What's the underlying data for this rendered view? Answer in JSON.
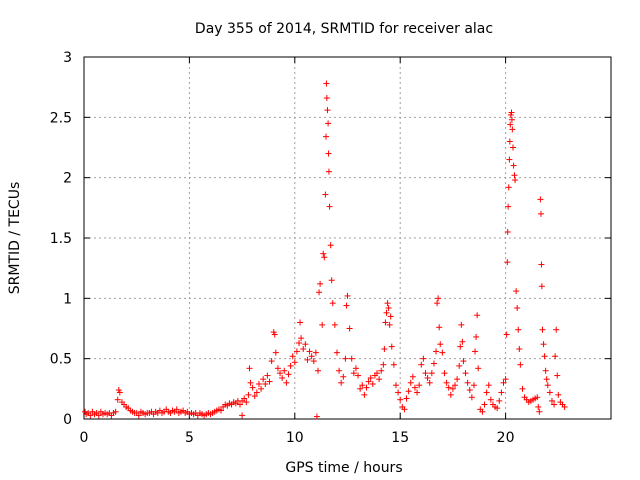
{
  "chart_data": {
    "type": "scatter",
    "title": "Day 355 of 2014, SRMTID for receiver alac",
    "xlabel": "GPS time / hours",
    "ylabel": "SRMTID / TECUs",
    "xlim": [
      0,
      25
    ],
    "ylim": [
      0,
      3
    ],
    "xticks": [
      0,
      5,
      10,
      15,
      20
    ],
    "xtick_labels": [
      "0",
      "5",
      "10",
      "15",
      "20"
    ],
    "yticks": [
      0,
      0.5,
      1,
      1.5,
      2,
      2.5,
      3
    ],
    "ytick_labels": [
      "0",
      "0.5",
      "1",
      "1.5",
      "2",
      "2.5",
      "3"
    ],
    "grid": true,
    "marker": "+",
    "series": [
      {
        "name": "SRMTID",
        "color": "#ff0000",
        "points": [
          [
            0.05,
            0.06
          ],
          [
            0.1,
            0.04
          ],
          [
            0.2,
            0.05
          ],
          [
            0.3,
            0.03
          ],
          [
            0.4,
            0.06
          ],
          [
            0.5,
            0.04
          ],
          [
            0.6,
            0.05
          ],
          [
            0.7,
            0.03
          ],
          [
            0.8,
            0.06
          ],
          [
            0.9,
            0.04
          ],
          [
            1.0,
            0.05
          ],
          [
            1.1,
            0.04
          ],
          [
            1.2,
            0.05
          ],
          [
            1.3,
            0.03
          ],
          [
            1.4,
            0.05
          ],
          [
            1.5,
            0.06
          ],
          [
            1.6,
            0.16
          ],
          [
            1.65,
            0.24
          ],
          [
            1.7,
            0.22
          ],
          [
            1.8,
            0.14
          ],
          [
            1.9,
            0.12
          ],
          [
            2.0,
            0.1
          ],
          [
            2.1,
            0.09
          ],
          [
            2.2,
            0.07
          ],
          [
            2.3,
            0.06
          ],
          [
            2.4,
            0.05
          ],
          [
            2.5,
            0.05
          ],
          [
            2.6,
            0.03
          ],
          [
            2.7,
            0.06
          ],
          [
            2.8,
            0.05
          ],
          [
            2.9,
            0.04
          ],
          [
            3.0,
            0.05
          ],
          [
            3.1,
            0.05
          ],
          [
            3.2,
            0.06
          ],
          [
            3.3,
            0.04
          ],
          [
            3.4,
            0.06
          ],
          [
            3.5,
            0.05
          ],
          [
            3.6,
            0.07
          ],
          [
            3.7,
            0.05
          ],
          [
            3.8,
            0.06
          ],
          [
            3.9,
            0.08
          ],
          [
            4.0,
            0.06
          ],
          [
            4.1,
            0.05
          ],
          [
            4.2,
            0.07
          ],
          [
            4.3,
            0.06
          ],
          [
            4.4,
            0.08
          ],
          [
            4.5,
            0.05
          ],
          [
            4.6,
            0.06
          ],
          [
            4.7,
            0.07
          ],
          [
            4.8,
            0.05
          ],
          [
            4.9,
            0.06
          ],
          [
            5.0,
            0.04
          ],
          [
            5.1,
            0.05
          ],
          [
            5.2,
            0.04
          ],
          [
            5.3,
            0.05
          ],
          [
            5.4,
            0.03
          ],
          [
            5.5,
            0.05
          ],
          [
            5.6,
            0.04
          ],
          [
            5.7,
            0.03
          ],
          [
            5.8,
            0.04
          ],
          [
            5.9,
            0.05
          ],
          [
            6.0,
            0.04
          ],
          [
            6.1,
            0.05
          ],
          [
            6.2,
            0.06
          ],
          [
            6.3,
            0.07
          ],
          [
            6.4,
            0.08
          ],
          [
            6.5,
            0.07
          ],
          [
            6.6,
            0.1
          ],
          [
            6.7,
            0.12
          ],
          [
            6.8,
            0.11
          ],
          [
            6.9,
            0.13
          ],
          [
            7.0,
            0.12
          ],
          [
            7.1,
            0.14
          ],
          [
            7.2,
            0.13
          ],
          [
            7.3,
            0.15
          ],
          [
            7.4,
            0.12
          ],
          [
            7.5,
            0.03
          ],
          [
            7.5,
            0.15
          ],
          [
            7.6,
            0.17
          ],
          [
            7.7,
            0.14
          ],
          [
            7.8,
            0.2
          ],
          [
            7.85,
            0.42
          ],
          [
            7.9,
            0.3
          ],
          [
            8.0,
            0.26
          ],
          [
            8.1,
            0.19
          ],
          [
            8.2,
            0.22
          ],
          [
            8.3,
            0.29
          ],
          [
            8.4,
            0.25
          ],
          [
            8.5,
            0.33
          ],
          [
            8.6,
            0.29
          ],
          [
            8.7,
            0.36
          ],
          [
            8.8,
            0.31
          ],
          [
            8.9,
            0.48
          ],
          [
            9.0,
            0.72
          ],
          [
            9.05,
            0.7
          ],
          [
            9.1,
            0.55
          ],
          [
            9.2,
            0.42
          ],
          [
            9.3,
            0.38
          ],
          [
            9.4,
            0.34
          ],
          [
            9.5,
            0.4
          ],
          [
            9.6,
            0.3
          ],
          [
            9.7,
            0.37
          ],
          [
            9.8,
            0.44
          ],
          [
            9.9,
            0.52
          ],
          [
            10.0,
            0.47
          ],
          [
            10.1,
            0.56
          ],
          [
            10.2,
            0.63
          ],
          [
            10.25,
            0.8
          ],
          [
            10.3,
            0.67
          ],
          [
            10.4,
            0.58
          ],
          [
            10.5,
            0.62
          ],
          [
            10.6,
            0.49
          ],
          [
            10.7,
            0.56
          ],
          [
            10.8,
            0.52
          ],
          [
            10.9,
            0.48
          ],
          [
            11.0,
            0.55
          ],
          [
            11.05,
            0.02
          ],
          [
            11.1,
            0.4
          ],
          [
            11.15,
            1.05
          ],
          [
            11.2,
            1.12
          ],
          [
            11.3,
            0.78
          ],
          [
            11.35,
            1.37
          ],
          [
            11.4,
            1.34
          ],
          [
            11.45,
            1.86
          ],
          [
            11.48,
            2.34
          ],
          [
            11.5,
            2.78
          ],
          [
            11.52,
            2.66
          ],
          [
            11.55,
            2.56
          ],
          [
            11.58,
            2.45
          ],
          [
            11.6,
            2.2
          ],
          [
            11.62,
            2.05
          ],
          [
            11.65,
            1.76
          ],
          [
            11.7,
            1.44
          ],
          [
            11.75,
            1.15
          ],
          [
            11.8,
            0.96
          ],
          [
            11.9,
            0.78
          ],
          [
            12.0,
            0.55
          ],
          [
            12.1,
            0.4
          ],
          [
            12.2,
            0.3
          ],
          [
            12.3,
            0.35
          ],
          [
            12.4,
            0.5
          ],
          [
            12.45,
            0.94
          ],
          [
            12.5,
            1.02
          ],
          [
            12.6,
            0.75
          ],
          [
            12.7,
            0.5
          ],
          [
            12.8,
            0.38
          ],
          [
            12.9,
            0.42
          ],
          [
            13.0,
            0.36
          ],
          [
            13.1,
            0.25
          ],
          [
            13.2,
            0.28
          ],
          [
            13.3,
            0.2
          ],
          [
            13.4,
            0.26
          ],
          [
            13.5,
            0.31
          ],
          [
            13.6,
            0.34
          ],
          [
            13.7,
            0.29
          ],
          [
            13.8,
            0.36
          ],
          [
            13.9,
            0.38
          ],
          [
            14.0,
            0.33
          ],
          [
            14.1,
            0.4
          ],
          [
            14.2,
            0.45
          ],
          [
            14.25,
            0.58
          ],
          [
            14.3,
            0.8
          ],
          [
            14.35,
            0.88
          ],
          [
            14.4,
            0.96
          ],
          [
            14.45,
            0.92
          ],
          [
            14.5,
            0.78
          ],
          [
            14.55,
            0.85
          ],
          [
            14.6,
            0.6
          ],
          [
            14.7,
            0.45
          ],
          [
            14.8,
            0.28
          ],
          [
            14.9,
            0.22
          ],
          [
            15.0,
            0.16
          ],
          [
            15.1,
            0.1
          ],
          [
            15.2,
            0.08
          ],
          [
            15.3,
            0.17
          ],
          [
            15.4,
            0.23
          ],
          [
            15.5,
            0.3
          ],
          [
            15.6,
            0.35
          ],
          [
            15.7,
            0.26
          ],
          [
            15.8,
            0.22
          ],
          [
            15.9,
            0.28
          ],
          [
            16.0,
            0.45
          ],
          [
            16.1,
            0.5
          ],
          [
            16.2,
            0.38
          ],
          [
            16.3,
            0.34
          ],
          [
            16.4,
            0.3
          ],
          [
            16.5,
            0.38
          ],
          [
            16.6,
            0.46
          ],
          [
            16.7,
            0.56
          ],
          [
            16.75,
            0.96
          ],
          [
            16.8,
            1.0
          ],
          [
            16.85,
            0.76
          ],
          [
            16.9,
            0.62
          ],
          [
            17.0,
            0.55
          ],
          [
            17.1,
            0.38
          ],
          [
            17.2,
            0.3
          ],
          [
            17.3,
            0.26
          ],
          [
            17.4,
            0.2
          ],
          [
            17.5,
            0.25
          ],
          [
            17.6,
            0.28
          ],
          [
            17.7,
            0.33
          ],
          [
            17.8,
            0.44
          ],
          [
            17.85,
            0.6
          ],
          [
            17.9,
            0.78
          ],
          [
            17.95,
            0.64
          ],
          [
            18.0,
            0.48
          ],
          [
            18.1,
            0.38
          ],
          [
            18.2,
            0.3
          ],
          [
            18.3,
            0.24
          ],
          [
            18.4,
            0.18
          ],
          [
            18.5,
            0.28
          ],
          [
            18.55,
            0.56
          ],
          [
            18.6,
            0.68
          ],
          [
            18.65,
            0.86
          ],
          [
            18.7,
            0.42
          ],
          [
            18.8,
            0.08
          ],
          [
            18.9,
            0.06
          ],
          [
            19.0,
            0.12
          ],
          [
            19.1,
            0.22
          ],
          [
            19.2,
            0.28
          ],
          [
            19.3,
            0.16
          ],
          [
            19.4,
            0.12
          ],
          [
            19.5,
            0.1
          ],
          [
            19.6,
            0.09
          ],
          [
            19.7,
            0.15
          ],
          [
            19.8,
            0.22
          ],
          [
            19.9,
            0.3
          ],
          [
            20.0,
            0.33
          ],
          [
            20.05,
            0.7
          ],
          [
            20.08,
            1.3
          ],
          [
            20.1,
            1.55
          ],
          [
            20.12,
            1.76
          ],
          [
            20.15,
            1.92
          ],
          [
            20.18,
            2.15
          ],
          [
            20.2,
            2.3
          ],
          [
            20.22,
            2.44
          ],
          [
            20.25,
            2.52
          ],
          [
            20.28,
            2.54
          ],
          [
            20.3,
            2.48
          ],
          [
            20.32,
            2.4
          ],
          [
            20.35,
            2.25
          ],
          [
            20.38,
            2.1
          ],
          [
            20.42,
            2.02
          ],
          [
            20.45,
            1.98
          ],
          [
            20.5,
            1.06
          ],
          [
            20.55,
            0.92
          ],
          [
            20.6,
            0.74
          ],
          [
            20.65,
            0.58
          ],
          [
            20.7,
            0.45
          ],
          [
            20.8,
            0.25
          ],
          [
            20.9,
            0.18
          ],
          [
            21.0,
            0.16
          ],
          [
            21.1,
            0.14
          ],
          [
            21.2,
            0.15
          ],
          [
            21.3,
            0.16
          ],
          [
            21.4,
            0.17
          ],
          [
            21.5,
            0.18
          ],
          [
            21.55,
            0.1
          ],
          [
            21.6,
            0.06
          ],
          [
            21.65,
            1.82
          ],
          [
            21.68,
            1.7
          ],
          [
            21.7,
            1.28
          ],
          [
            21.72,
            1.1
          ],
          [
            21.75,
            0.74
          ],
          [
            21.8,
            0.62
          ],
          [
            21.85,
            0.52
          ],
          [
            21.9,
            0.4
          ],
          [
            21.95,
            0.33
          ],
          [
            22.0,
            0.28
          ],
          [
            22.1,
            0.22
          ],
          [
            22.2,
            0.15
          ],
          [
            22.3,
            0.12
          ],
          [
            22.35,
            0.52
          ],
          [
            22.4,
            0.74
          ],
          [
            22.45,
            0.36
          ],
          [
            22.5,
            0.2
          ],
          [
            22.6,
            0.14
          ],
          [
            22.7,
            0.12
          ],
          [
            22.8,
            0.1
          ]
        ]
      }
    ]
  }
}
